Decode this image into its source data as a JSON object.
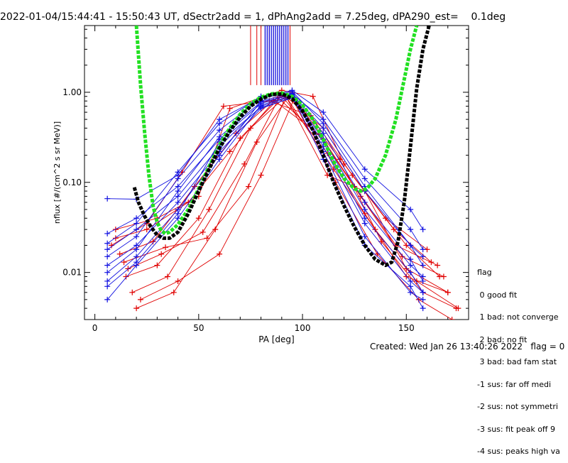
{
  "title": "2022-01-04/15:44:41 - 15:50:43 UT, dSectr2add = 1, dPhAng2add = 7.25deg, dPA290_est=    0.1deg",
  "footer": {
    "created": "Created: Wed Jan 26 13:40:26 2022",
    "flag": "flag = 0"
  },
  "legend": {
    "title": "flag",
    "items": [
      " 0 good fit",
      " 1 bad: not converge",
      " 2 bad: no fit",
      " 3 bad: bad fam stat",
      "-1 sus: far off medi",
      "-2 sus: not symmetri",
      "-3 sus: fit peak off 9",
      "-4 sus: peaks high va"
    ]
  },
  "chart_data": {
    "type": "scatter",
    "xlabel": "PA [deg]",
    "ylabel": "nflux [#/(cm^2 s sr MeV)]",
    "xlim": [
      -5,
      180
    ],
    "ylim": [
      0.003,
      5.5
    ],
    "yscale": "log",
    "xticks": [
      0,
      50,
      100,
      150
    ],
    "yticks": [
      0.01,
      0.1,
      1.0
    ],
    "ytick_labels": [
      "0.01",
      "0.10",
      "1.00"
    ],
    "colors": {
      "red": "#e00000",
      "blue": "#1010e0",
      "green": "#22e022",
      "black": "#000000"
    },
    "series": [
      {
        "name": "green_fit",
        "color": "#22e022",
        "style": "thick-dashed",
        "x": [
          20,
          22,
          24,
          26,
          28,
          30,
          32,
          34,
          36,
          40,
          45,
          50,
          55,
          60,
          65,
          70,
          75,
          80,
          85,
          90,
          95,
          100,
          105,
          110,
          115,
          120,
          125,
          128,
          131,
          135,
          140,
          145,
          150,
          152,
          155
        ],
        "y": [
          5.5,
          1.2,
          0.35,
          0.12,
          0.055,
          0.036,
          0.029,
          0.027,
          0.028,
          0.034,
          0.05,
          0.085,
          0.15,
          0.26,
          0.4,
          0.57,
          0.75,
          0.88,
          0.96,
          0.98,
          0.9,
          0.72,
          0.5,
          0.3,
          0.17,
          0.11,
          0.085,
          0.08,
          0.085,
          0.11,
          0.2,
          0.5,
          1.8,
          3.0,
          5.5
        ]
      },
      {
        "name": "black_fit",
        "color": "#000000",
        "style": "thick-dashed",
        "x": [
          19,
          21,
          24,
          27,
          30,
          33,
          36,
          40,
          45,
          50,
          55,
          60,
          65,
          70,
          75,
          80,
          85,
          90,
          95,
          100,
          105,
          110,
          115,
          120,
          125,
          130,
          135,
          140,
          143,
          146,
          149,
          152,
          155,
          158,
          161
        ],
        "y": [
          0.088,
          0.06,
          0.042,
          0.032,
          0.026,
          0.024,
          0.024,
          0.028,
          0.045,
          0.08,
          0.14,
          0.24,
          0.37,
          0.53,
          0.7,
          0.84,
          0.94,
          0.96,
          0.85,
          0.62,
          0.38,
          0.2,
          0.1,
          0.055,
          0.032,
          0.02,
          0.014,
          0.012,
          0.013,
          0.022,
          0.06,
          0.25,
          1.1,
          3.0,
          5.5
        ]
      }
    ],
    "red_profiles": [
      {
        "x": [
          10,
          25,
          45,
          65,
          88,
          110,
          125,
          145,
          165
        ],
        "y": [
          0.024,
          0.03,
          0.06,
          0.22,
          0.88,
          0.3,
          0.09,
          0.02,
          0.012
        ]
      },
      {
        "x": [
          15,
          30,
          50,
          70,
          90,
          112,
          130,
          150,
          170
        ],
        "y": [
          0.009,
          0.012,
          0.04,
          0.31,
          0.92,
          0.21,
          0.045,
          0.009,
          0.006
        ]
      },
      {
        "x": [
          18,
          35,
          55,
          75,
          92,
          115,
          135,
          155,
          175
        ],
        "y": [
          0.006,
          0.009,
          0.05,
          0.4,
          0.9,
          0.14,
          0.03,
          0.008,
          0.004
        ]
      },
      {
        "x": [
          12,
          28,
          48,
          68,
          86,
          108,
          128,
          148,
          168
        ],
        "y": [
          0.016,
          0.022,
          0.09,
          0.35,
          0.82,
          0.34,
          0.07,
          0.015,
          0.009
        ]
      },
      {
        "x": [
          20,
          38,
          58,
          78,
          94,
          116,
          136,
          156,
          172
        ],
        "y": [
          0.004,
          0.006,
          0.03,
          0.28,
          0.95,
          0.1,
          0.016,
          0.005,
          0.003
        ]
      },
      {
        "x": [
          8,
          25,
          42,
          62,
          84,
          104,
          124,
          144,
          162
        ],
        "y": [
          0.02,
          0.035,
          0.13,
          0.7,
          0.8,
          0.55,
          0.12,
          0.03,
          0.013
        ]
      },
      {
        "x": [
          16,
          32,
          52,
          72,
          90,
          110,
          130,
          150,
          170
        ],
        "y": [
          0.011,
          0.016,
          0.028,
          0.16,
          0.98,
          0.4,
          0.08,
          0.011,
          0.006
        ]
      },
      {
        "x": [
          22,
          40,
          60,
          80,
          96,
          118,
          138,
          158,
          174
        ],
        "y": [
          0.005,
          0.008,
          0.016,
          0.12,
          0.85,
          0.18,
          0.022,
          0.006,
          0.004
        ]
      },
      {
        "x": [
          10,
          30,
          50,
          65,
          90,
          105,
          120,
          140,
          160
        ],
        "y": [
          0.03,
          0.04,
          0.07,
          0.66,
          1.05,
          0.9,
          0.16,
          0.04,
          0.018
        ]
      },
      {
        "x": [
          14,
          34,
          54,
          74,
          92,
          112,
          130,
          150,
          166
        ],
        "y": [
          0.013,
          0.019,
          0.024,
          0.09,
          0.9,
          0.12,
          0.08,
          0.02,
          0.009
        ]
      }
    ],
    "blue_profiles": [
      {
        "x": [
          6,
          20,
          40,
          60,
          80,
          95,
          110,
          130,
          152,
          158
        ],
        "y": [
          0.027,
          0.04,
          0.09,
          0.3,
          0.75,
          0.95,
          0.4,
          0.08,
          0.02,
          0.015
        ]
      },
      {
        "x": [
          6,
          20,
          40,
          60,
          80,
          95,
          110,
          130,
          152,
          158
        ],
        "y": [
          0.018,
          0.03,
          0.07,
          0.25,
          0.7,
          0.9,
          0.3,
          0.05,
          0.012,
          0.009
        ]
      },
      {
        "x": [
          6,
          20,
          40,
          60,
          80,
          95,
          110,
          130,
          152,
          158
        ],
        "y": [
          0.012,
          0.02,
          0.06,
          0.22,
          0.66,
          0.88,
          0.25,
          0.035,
          0.008,
          0.006
        ]
      },
      {
        "x": [
          6,
          20,
          40,
          60,
          80,
          95,
          110,
          130,
          152,
          158
        ],
        "y": [
          0.008,
          0.015,
          0.05,
          0.2,
          0.8,
          0.98,
          0.22,
          0.025,
          0.006,
          0.005
        ]
      },
      {
        "x": [
          6,
          20,
          40,
          60,
          80,
          95,
          110,
          130,
          152,
          158
        ],
        "y": [
          0.005,
          0.012,
          0.04,
          0.18,
          0.72,
          0.92,
          0.18,
          0.02,
          0.007,
          0.004
        ]
      },
      {
        "x": [
          6,
          20,
          40,
          60,
          80,
          95,
          110,
          130,
          152,
          158
        ],
        "y": [
          0.015,
          0.025,
          0.11,
          0.38,
          0.85,
          1.02,
          0.45,
          0.09,
          0.02,
          0.012
        ]
      },
      {
        "x": [
          6,
          20,
          40,
          60,
          80,
          95,
          110,
          130,
          152,
          158
        ],
        "y": [
          0.021,
          0.035,
          0.13,
          0.45,
          0.9,
          0.96,
          0.5,
          0.11,
          0.03,
          0.018
        ]
      },
      {
        "x": [
          6,
          20,
          40,
          60,
          80,
          95,
          110,
          130,
          152,
          158
        ],
        "y": [
          0.01,
          0.018,
          0.08,
          0.32,
          0.78,
          0.94,
          0.35,
          0.06,
          0.014,
          0.008
        ]
      },
      {
        "x": [
          6,
          20,
          40,
          60,
          80,
          95,
          110,
          130,
          152,
          158
        ],
        "y": [
          0.007,
          0.013,
          0.045,
          0.28,
          0.68,
          0.86,
          0.28,
          0.04,
          0.01,
          0.006
        ]
      },
      {
        "x": [
          6,
          20,
          40,
          60,
          80,
          95,
          110,
          130,
          152,
          158
        ],
        "y": [
          0.066,
          0.065,
          0.12,
          0.5,
          0.88,
          1.05,
          0.6,
          0.14,
          0.05,
          0.03
        ]
      }
    ],
    "spikes": {
      "red_x": [
        75,
        78,
        80,
        82,
        84,
        86,
        88,
        90,
        92,
        94
      ],
      "blue_x": [
        82,
        83,
        84,
        85,
        86,
        87,
        88,
        89,
        90,
        91,
        92,
        93
      ],
      "y_bottom": 1.2,
      "y_top": 5.5
    }
  }
}
